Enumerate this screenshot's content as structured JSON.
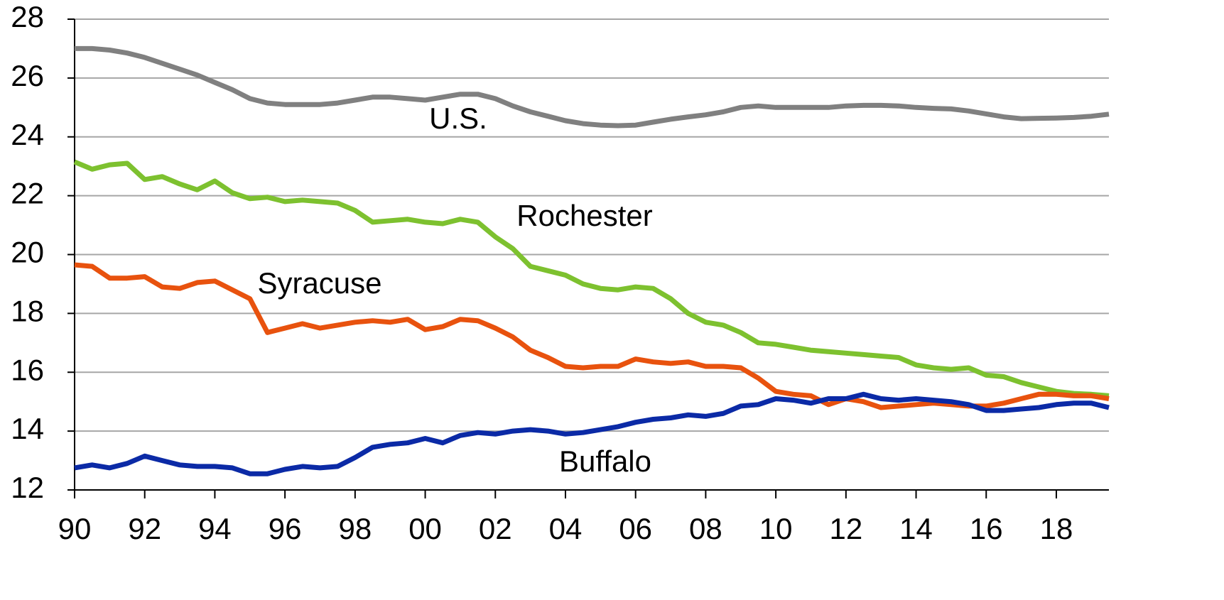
{
  "chart_data": {
    "type": "line",
    "x": [
      1990,
      1990.5,
      1991,
      1991.5,
      1992,
      1992.5,
      1993,
      1993.5,
      1994,
      1994.5,
      1995,
      1995.5,
      1996,
      1996.5,
      1997,
      1997.5,
      1998,
      1998.5,
      1999,
      1999.5,
      2000,
      2000.5,
      2001,
      2001.5,
      2002,
      2002.5,
      2003,
      2003.5,
      2004,
      2004.5,
      2005,
      2005.5,
      2006,
      2006.5,
      2007,
      2007.5,
      2008,
      2008.5,
      2009,
      2009.5,
      2010,
      2010.5,
      2011,
      2011.5,
      2012,
      2012.5,
      2013,
      2013.5,
      2014,
      2014.5,
      2015,
      2015.5,
      2016,
      2016.5,
      2017,
      2017.5,
      2018,
      2018.5,
      2019,
      2019.5
    ],
    "series": [
      {
        "name": "U.S.",
        "color": "#808080",
        "values": [
          27.0,
          27.0,
          26.95,
          26.85,
          26.7,
          26.5,
          26.3,
          26.1,
          25.85,
          25.6,
          25.3,
          25.15,
          25.1,
          25.1,
          25.1,
          25.15,
          25.25,
          25.35,
          25.35,
          25.3,
          25.25,
          25.35,
          25.45,
          25.45,
          25.3,
          25.05,
          24.85,
          24.7,
          24.55,
          24.45,
          24.4,
          24.38,
          24.4,
          24.5,
          24.6,
          24.68,
          24.75,
          24.85,
          25.0,
          25.05,
          25.0,
          25.0,
          25.0,
          25.0,
          25.05,
          25.07,
          25.07,
          25.05,
          25.0,
          24.97,
          24.95,
          24.88,
          24.78,
          24.68,
          24.62,
          24.63,
          24.64,
          24.66,
          24.7,
          24.77
        ]
      },
      {
        "name": "Rochester",
        "color": "#7dc12f",
        "values": [
          23.15,
          22.9,
          23.05,
          23.1,
          22.55,
          22.65,
          22.4,
          22.2,
          22.5,
          22.1,
          21.9,
          21.95,
          21.8,
          21.85,
          21.8,
          21.75,
          21.5,
          21.1,
          21.15,
          21.2,
          21.1,
          21.05,
          21.2,
          21.1,
          20.6,
          20.2,
          19.6,
          19.45,
          19.3,
          19.0,
          18.85,
          18.8,
          18.9,
          18.85,
          18.5,
          18.0,
          17.7,
          17.6,
          17.35,
          17.0,
          16.95,
          16.85,
          16.75,
          16.7,
          16.65,
          16.6,
          16.55,
          16.5,
          16.25,
          16.15,
          16.1,
          16.15,
          15.9,
          15.85,
          15.65,
          15.5,
          15.35,
          15.28,
          15.25,
          15.2
        ]
      },
      {
        "name": "Syracuse",
        "color": "#e8520e",
        "values": [
          19.65,
          19.6,
          19.2,
          19.2,
          19.25,
          18.9,
          18.85,
          19.05,
          19.1,
          18.8,
          18.5,
          17.35,
          17.5,
          17.65,
          17.5,
          17.6,
          17.7,
          17.75,
          17.7,
          17.8,
          17.45,
          17.55,
          17.8,
          17.75,
          17.5,
          17.2,
          16.75,
          16.5,
          16.2,
          16.15,
          16.2,
          16.2,
          16.45,
          16.35,
          16.3,
          16.35,
          16.2,
          16.2,
          16.15,
          15.8,
          15.35,
          15.25,
          15.2,
          14.9,
          15.1,
          15.0,
          14.8,
          14.85,
          14.9,
          14.95,
          14.9,
          14.85,
          14.85,
          14.95,
          15.1,
          15.25,
          15.25,
          15.2,
          15.2,
          15.1
        ]
      },
      {
        "name": "Buffalo",
        "color": "#0b2aa6",
        "values": [
          12.75,
          12.85,
          12.75,
          12.9,
          13.15,
          13.0,
          12.85,
          12.8,
          12.8,
          12.75,
          12.55,
          12.55,
          12.7,
          12.8,
          12.75,
          12.8,
          13.1,
          13.45,
          13.55,
          13.6,
          13.75,
          13.6,
          13.85,
          13.95,
          13.9,
          14.0,
          14.05,
          14.0,
          13.9,
          13.95,
          14.05,
          14.15,
          14.3,
          14.4,
          14.45,
          14.55,
          14.5,
          14.6,
          14.85,
          14.9,
          15.1,
          15.05,
          14.95,
          15.1,
          15.1,
          15.25,
          15.1,
          15.05,
          15.1,
          15.05,
          15.0,
          14.9,
          14.7,
          14.7,
          14.75,
          14.8,
          14.9,
          14.95,
          14.95,
          14.8
        ]
      }
    ],
    "xlim": [
      1990,
      2019.5
    ],
    "xticks": [
      {
        "value": 1990,
        "label": "90"
      },
      {
        "value": 1992,
        "label": "92"
      },
      {
        "value": 1994,
        "label": "94"
      },
      {
        "value": 1996,
        "label": "96"
      },
      {
        "value": 1998,
        "label": "98"
      },
      {
        "value": 2000,
        "label": "00"
      },
      {
        "value": 2002,
        "label": "02"
      },
      {
        "value": 2004,
        "label": "04"
      },
      {
        "value": 2006,
        "label": "06"
      },
      {
        "value": 2008,
        "label": "08"
      },
      {
        "value": 2010,
        "label": "10"
      },
      {
        "value": 2012,
        "label": "12"
      },
      {
        "value": 2014,
        "label": "14"
      },
      {
        "value": 2016,
        "label": "16"
      },
      {
        "value": 2018,
        "label": "18"
      }
    ],
    "ylim": [
      12,
      28
    ],
    "yticks": [
      12,
      14,
      16,
      18,
      20,
      22,
      24,
      26,
      28
    ],
    "grid": true
  }
}
